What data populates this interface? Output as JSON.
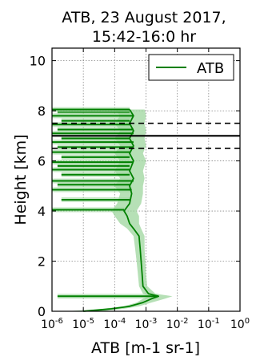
{
  "chart_data": {
    "type": "line",
    "title_line1": "ATB, 23 August 2017,",
    "title_line2": "15:42-16:0 hr",
    "xlabel": "ATB [m-1 sr-1]",
    "ylabel": "Height [km]",
    "xscale": "log",
    "xlim": [
      1e-06,
      1
    ],
    "ylim": [
      0,
      10.5
    ],
    "grid": true,
    "legend": {
      "position": "top-right",
      "entries": [
        "ATB"
      ]
    },
    "colors": {
      "line": "#008000",
      "band": "#9ed69e",
      "hline": "#000000"
    },
    "x_ticks": [
      {
        "v": 1e-06,
        "base": "10",
        "exp": "-6"
      },
      {
        "v": 1e-05,
        "base": "10",
        "exp": "-5"
      },
      {
        "v": 0.0001,
        "base": "10",
        "exp": "-4"
      },
      {
        "v": 0.001,
        "base": "10",
        "exp": "-3"
      },
      {
        "v": 0.01,
        "base": "10",
        "exp": "-2"
      },
      {
        "v": 0.1,
        "base": "10",
        "exp": "-1"
      },
      {
        "v": 1,
        "base": "10",
        "exp": "0"
      }
    ],
    "y_ticks": [
      {
        "v": 0,
        "label": "0"
      },
      {
        "v": 2,
        "label": "2"
      },
      {
        "v": 4,
        "label": "4"
      },
      {
        "v": 6,
        "label": "6"
      },
      {
        "v": 8,
        "label": "8"
      },
      {
        "v": 10,
        "label": "10"
      }
    ],
    "horizontal_lines": [
      {
        "y": 7.0,
        "style": "solid"
      },
      {
        "y": 7.5,
        "style": "dashed"
      },
      {
        "y": 6.5,
        "style": "dashed"
      }
    ],
    "series": [
      {
        "name": "ATB",
        "points": [
          {
            "y": 0.0,
            "x": 1e-05,
            "lo": 3e-06,
            "hi": 4e-05
          },
          {
            "y": 0.1,
            "x": 8e-05,
            "lo": 4e-05,
            "hi": 0.0002
          },
          {
            "y": 0.2,
            "x": 0.0003,
            "lo": 0.0002,
            "hi": 0.0006
          },
          {
            "y": 0.35,
            "x": 0.0008,
            "lo": 0.0005,
            "hi": 0.0015
          },
          {
            "y": 0.5,
            "x": 0.0015,
            "lo": 0.0008,
            "hi": 0.004
          },
          {
            "y": 0.6,
            "x": 0.0025,
            "lo": 0.0012,
            "hi": 0.007
          },
          {
            "y": 0.7,
            "x": 0.0012,
            "lo": 0.0008,
            "hi": 0.002
          },
          {
            "y": 1.0,
            "x": 0.0008,
            "lo": 0.0006,
            "hi": 0.0011
          },
          {
            "y": 1.5,
            "x": 0.00075,
            "lo": 0.00055,
            "hi": 0.001
          },
          {
            "y": 2.0,
            "x": 0.0007,
            "lo": 0.0005,
            "hi": 0.00095
          },
          {
            "y": 2.5,
            "x": 0.00065,
            "lo": 0.00045,
            "hi": 0.0009
          },
          {
            "y": 3.0,
            "x": 0.0006,
            "lo": 0.0004,
            "hi": 0.0009
          },
          {
            "y": 3.3,
            "x": 0.0004,
            "lo": 0.00025,
            "hi": 0.0007
          },
          {
            "y": 3.5,
            "x": 0.0003,
            "lo": 0.00015,
            "hi": 0.0006
          },
          {
            "y": 3.8,
            "x": 0.00025,
            "lo": 0.0001,
            "hi": 0.0006
          },
          {
            "y": 4.0,
            "x": 0.0002,
            "lo": 8e-05,
            "hi": 0.0005
          },
          {
            "y": 4.3,
            "x": 0.0003,
            "lo": 0.00012,
            "hi": 0.0007
          },
          {
            "y": 4.7,
            "x": 0.00035,
            "lo": 0.00015,
            "hi": 0.0008
          },
          {
            "y": 5.0,
            "x": 0.0003,
            "lo": 0.0001,
            "hi": 0.0008
          },
          {
            "y": 5.3,
            "x": 0.0004,
            "lo": 0.00015,
            "hi": 0.0009
          },
          {
            "y": 5.6,
            "x": 0.0003,
            "lo": 0.0001,
            "hi": 0.0008
          },
          {
            "y": 6.0,
            "x": 0.0004,
            "lo": 0.00015,
            "hi": 0.001
          },
          {
            "y": 6.3,
            "x": 0.0003,
            "lo": 0.0001,
            "hi": 0.0008
          },
          {
            "y": 6.6,
            "x": 0.0004,
            "lo": 0.00015,
            "hi": 0.001
          },
          {
            "y": 6.9,
            "x": 0.0003,
            "lo": 0.0001,
            "hi": 0.0009
          },
          {
            "y": 7.2,
            "x": 0.0004,
            "lo": 0.00015,
            "hi": 0.001
          },
          {
            "y": 7.5,
            "x": 0.0003,
            "lo": 0.0001,
            "hi": 0.0009
          },
          {
            "y": 7.8,
            "x": 0.0004,
            "lo": 0.00015,
            "hi": 0.001
          },
          {
            "y": 8.05,
            "x": 0.0003,
            "lo": 0.0001,
            "hi": 0.0009
          }
        ],
        "spikes": [
          {
            "y": 0.6,
            "x": 1.5e-06
          },
          {
            "y": 4.05,
            "x": 1e-06
          },
          {
            "y": 4.45,
            "x": 2e-06
          },
          {
            "y": 4.85,
            "x": 1e-06
          },
          {
            "y": 5.05,
            "x": 1.5e-06
          },
          {
            "y": 5.2,
            "x": 1e-06
          },
          {
            "y": 5.45,
            "x": 2e-06
          },
          {
            "y": 5.65,
            "x": 1e-06
          },
          {
            "y": 5.8,
            "x": 1.5e-06
          },
          {
            "y": 5.95,
            "x": 1e-06
          },
          {
            "y": 6.15,
            "x": 2e-06
          },
          {
            "y": 6.35,
            "x": 1e-06
          },
          {
            "y": 6.55,
            "x": 1.5e-06
          },
          {
            "y": 6.75,
            "x": 1e-06
          },
          {
            "y": 6.9,
            "x": 2e-06
          },
          {
            "y": 7.1,
            "x": 1e-06
          },
          {
            "y": 7.25,
            "x": 1.5e-06
          },
          {
            "y": 7.45,
            "x": 1e-06
          },
          {
            "y": 7.6,
            "x": 2e-06
          },
          {
            "y": 7.8,
            "x": 1e-06
          },
          {
            "y": 7.95,
            "x": 1.5e-06
          },
          {
            "y": 8.05,
            "x": 1e-06
          }
        ]
      }
    ]
  }
}
